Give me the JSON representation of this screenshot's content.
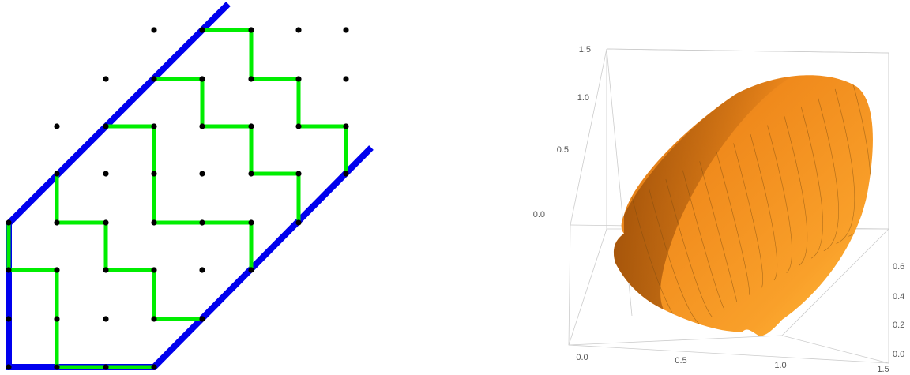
{
  "lattice": {
    "boundary_color": "#0000ee",
    "path_color": "#00ee00",
    "dot_color": "#000000"
  },
  "surface_plot": {
    "surface_color": "#f7941d",
    "box_color": "#cccccc",
    "mesh_color": "#7a4a10",
    "vertical_axis_ticks": [
      "1.5",
      "1.0",
      "0.5",
      "0.0"
    ],
    "right_axis_ticks": [
      "0.6",
      "0.4",
      "0.2",
      "0.0"
    ],
    "bottom_axis_ticks": [
      "0.0",
      "0.5",
      "1.0",
      "1.5"
    ]
  }
}
